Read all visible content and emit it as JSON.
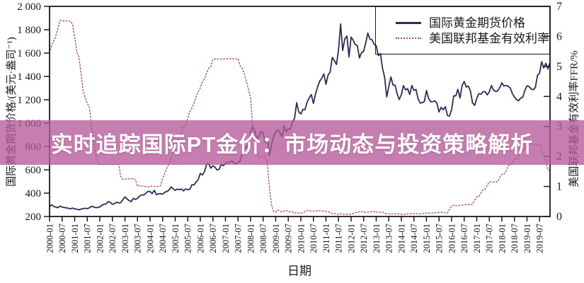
{
  "banner": {
    "title": "实时追踪国际PT金价：市场动态与投资策略解析",
    "overlay_color": "rgba(181,90,152,0.78)",
    "text_color": "#ffffff"
  },
  "chart_data": {
    "type": "line",
    "xlabel": "日期",
    "ylabel_left": "国际黄金期货价格/(美元·盎司⁻¹)",
    "ylabel_right": "美国联邦基金有效利率FFR/%",
    "grid": false,
    "legend_position": "top-right",
    "left_axis": {
      "min": 200,
      "max": 2000,
      "tick_values": [
        2000,
        1800,
        1600,
        1400,
        1200,
        1000,
        800,
        600,
        400,
        200
      ],
      "tick_labels": [
        "2 000",
        "1 800",
        "1 600",
        "1 400",
        "1 200",
        "1 000",
        "800",
        "600",
        "400",
        "200"
      ]
    },
    "right_axis": {
      "min": 0,
      "max": 7,
      "tick_values": [
        7,
        6,
        5,
        4,
        3,
        2,
        1,
        0
      ],
      "tick_labels": [
        "7",
        "6",
        "5",
        "4",
        "3",
        "2",
        "1",
        "0"
      ]
    },
    "x_tick_every": 6,
    "x_tick_labels": [
      "2000-01",
      "2000-07",
      "2001-01",
      "2001-07",
      "2002-01",
      "2002-07",
      "2003-01",
      "2003-07",
      "2004-01",
      "2004-07",
      "2005-01",
      "2005-07",
      "2006-01",
      "2006-07",
      "2007-01",
      "2007-07",
      "2008-01",
      "2008-07",
      "2009-01",
      "2009-07",
      "2010-01",
      "2010-07",
      "2011-01",
      "2011-07",
      "2012-01",
      "2012-07",
      "2013-01",
      "2013-07",
      "2014-01",
      "2014-07",
      "2015-01",
      "2015-07",
      "2016-01",
      "2016-07",
      "2017-01",
      "2017-07",
      "2018-01",
      "2018-07",
      "2019-01",
      "2019-07"
    ],
    "legend": [
      {
        "label": "国际黄金期货价格",
        "color": "#2f2b58",
        "style": "solid"
      },
      {
        "label": "美国联邦基金有效利率",
        "color": "#b14f68",
        "style": "dotted"
      }
    ],
    "series": [
      {
        "name": "国际黄金期货价格",
        "axis": "left",
        "values": [
          284,
          300,
          286,
          280,
          275,
          289,
          281,
          277,
          274,
          270,
          266,
          272,
          266,
          262,
          257,
          263,
          267,
          270,
          267,
          274,
          287,
          283,
          276,
          277,
          282,
          297,
          304,
          308,
          327,
          321,
          304,
          310,
          322,
          317,
          319,
          343,
          368,
          350,
          336,
          328,
          355,
          346,
          355,
          375,
          385,
          385,
          398,
          415,
          414,
          396,
          424,
          388,
          394,
          395,
          391,
          407,
          415,
          425,
          453,
          438,
          424,
          435,
          429,
          436,
          419,
          437,
          429,
          434,
          472,
          470,
          495,
          517,
          569,
          556,
          583,
          651,
          653,
          614,
          634,
          623,
          599,
          604,
          647,
          636,
          651,
          665,
          664,
          677,
          659,
          651,
          666,
          672,
          743,
          789,
          783,
          834,
          923,
          971,
          934,
          865,
          886,
          928,
          914,
          833,
          879,
          723,
          816,
          880,
          927,
          942,
          917,
          883,
          975,
          927,
          953,
          948,
          1008,
          1040,
          1175,
          1096,
          1078,
          1118,
          1116,
          1180,
          1215,
          1244,
          1169,
          1248,
          1310,
          1359,
          1385,
          1421,
          1333,
          1411,
          1439,
          1563,
          1536,
          1502,
          1628,
          1850,
          1622,
          1722,
          1746,
          1566,
          1737,
          1711,
          1672,
          1664,
          1558,
          1604,
          1615,
          1687,
          1771,
          1719,
          1714,
          1676,
          1662,
          1578,
          1595,
          1472,
          1393,
          1224,
          1312,
          1396,
          1327,
          1324,
          1250,
          1202,
          1244,
          1321,
          1284,
          1296,
          1246,
          1322,
          1281,
          1287,
          1209,
          1171,
          1176,
          1184,
          1279,
          1213,
          1183,
          1184,
          1190,
          1171,
          1095,
          1135,
          1114,
          1141,
          1065,
          1060,
          1116,
          1234,
          1233,
          1290,
          1215,
          1321,
          1357,
          1309,
          1317,
          1273,
          1174,
          1152,
          1211,
          1253,
          1247,
          1268,
          1270,
          1242,
          1268,
          1322,
          1284,
          1271,
          1275,
          1305,
          1345,
          1318,
          1323,
          1315,
          1301,
          1253,
          1224,
          1201,
          1192,
          1215,
          1222,
          1281,
          1320,
          1313,
          1292,
          1286,
          1306,
          1410,
          1428,
          1526,
          1472,
          1513,
          1464,
          1520
        ]
      },
      {
        "name": "美国联邦基金有效利率",
        "axis": "right",
        "values": [
          5.45,
          5.73,
          5.85,
          6.02,
          6.27,
          6.53,
          6.54,
          6.5,
          6.52,
          6.51,
          6.51,
          6.4,
          5.98,
          5.49,
          5.31,
          4.8,
          4.21,
          3.97,
          3.77,
          3.65,
          3.07,
          2.49,
          2.09,
          1.82,
          1.73,
          1.74,
          1.73,
          1.75,
          1.75,
          1.75,
          1.73,
          1.74,
          1.75,
          1.75,
          1.34,
          1.24,
          1.24,
          1.26,
          1.25,
          1.26,
          1.26,
          1.22,
          1.01,
          1.03,
          1.01,
          1.01,
          1.0,
          0.98,
          1.0,
          1.01,
          1.0,
          1.0,
          1.0,
          1.03,
          1.26,
          1.43,
          1.61,
          1.76,
          1.93,
          2.16,
          2.28,
          2.5,
          2.63,
          2.79,
          3.0,
          3.04,
          3.26,
          3.5,
          3.62,
          3.78,
          4.0,
          4.16,
          4.29,
          4.49,
          4.59,
          4.79,
          4.94,
          4.99,
          5.24,
          5.25,
          5.25,
          5.25,
          5.25,
          5.24,
          5.25,
          5.26,
          5.26,
          5.25,
          5.25,
          5.25,
          5.26,
          5.02,
          4.94,
          4.76,
          4.49,
          4.24,
          3.94,
          2.98,
          2.61,
          2.28,
          1.98,
          2.0,
          2.01,
          2.0,
          1.81,
          0.97,
          0.39,
          0.16,
          0.15,
          0.22,
          0.18,
          0.15,
          0.18,
          0.21,
          0.16,
          0.16,
          0.15,
          0.12,
          0.12,
          0.12,
          0.11,
          0.13,
          0.16,
          0.2,
          0.2,
          0.18,
          0.18,
          0.19,
          0.19,
          0.19,
          0.19,
          0.18,
          0.17,
          0.16,
          0.14,
          0.1,
          0.09,
          0.09,
          0.07,
          0.1,
          0.08,
          0.07,
          0.08,
          0.07,
          0.08,
          0.1,
          0.13,
          0.14,
          0.16,
          0.16,
          0.16,
          0.13,
          0.14,
          0.16,
          0.16,
          0.16,
          0.14,
          0.15,
          0.14,
          0.15,
          0.11,
          0.09,
          0.09,
          0.08,
          0.08,
          0.09,
          0.08,
          0.09,
          0.07,
          0.07,
          0.08,
          0.09,
          0.09,
          0.1,
          0.09,
          0.09,
          0.09,
          0.09,
          0.09,
          0.12,
          0.11,
          0.11,
          0.11,
          0.12,
          0.12,
          0.13,
          0.13,
          0.14,
          0.14,
          0.12,
          0.12,
          0.24,
          0.34,
          0.38,
          0.36,
          0.37,
          0.37,
          0.38,
          0.39,
          0.4,
          0.4,
          0.4,
          0.41,
          0.54,
          0.65,
          0.66,
          0.79,
          0.9,
          0.91,
          1.04,
          1.15,
          1.16,
          1.15,
          1.15,
          1.16,
          1.3,
          1.41,
          1.42,
          1.51,
          1.69,
          1.7,
          1.82,
          1.91,
          1.91,
          1.95,
          2.19,
          2.2,
          2.27,
          2.4,
          2.4,
          2.41,
          2.42,
          2.39,
          2.38,
          2.4,
          2.13,
          2.04,
          1.83,
          1.55,
          1.55
        ]
      }
    ]
  }
}
